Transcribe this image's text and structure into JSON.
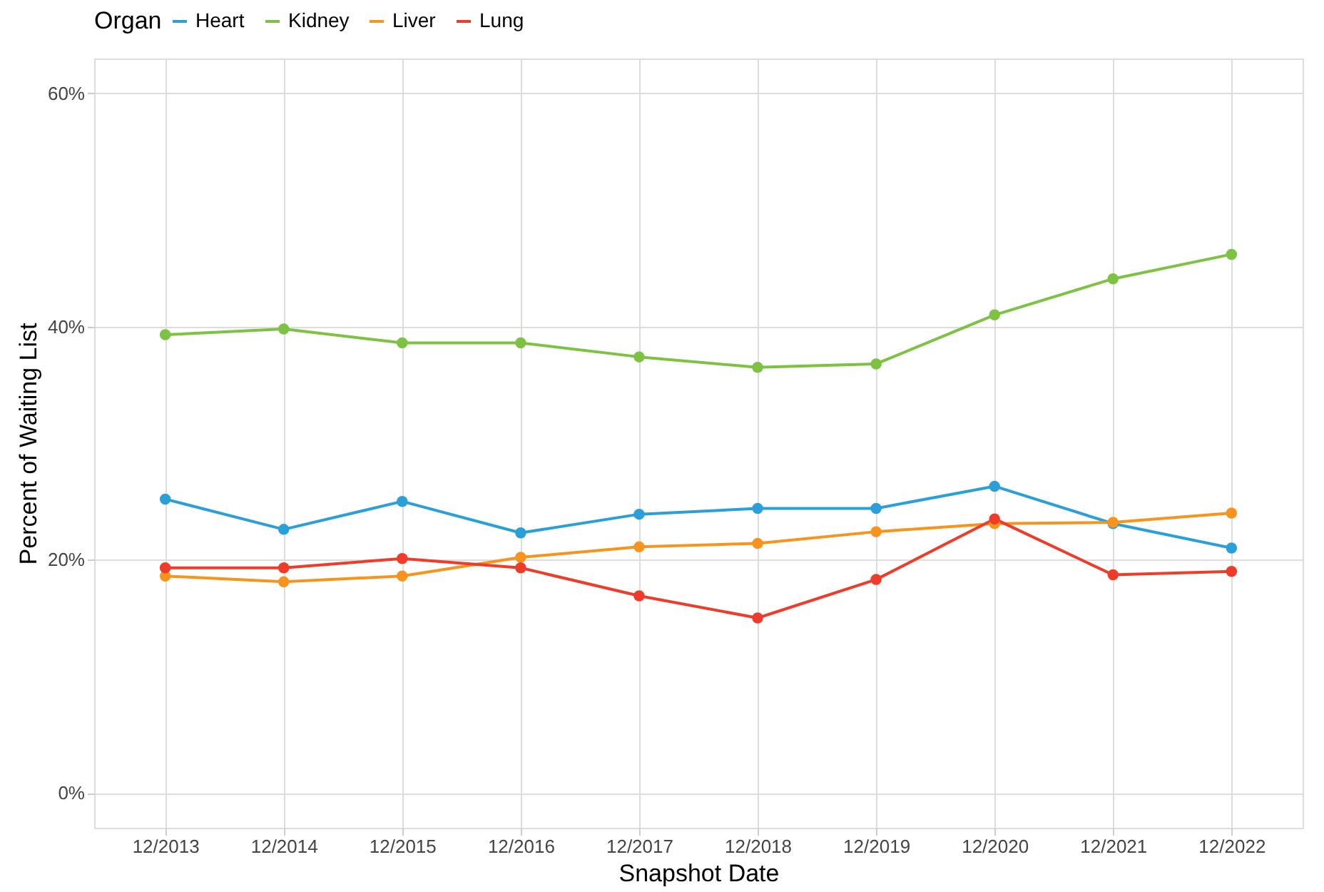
{
  "chart_data": {
    "type": "line",
    "xlabel": "Snapshot Date",
    "ylabel": "Percent of Waiting List",
    "legend_title": "Organ",
    "legend": "top",
    "grid": true,
    "marker": "circle",
    "line_style": "solid",
    "categories": [
      "12/2013",
      "12/2014",
      "12/2015",
      "12/2016",
      "12/2017",
      "12/2018",
      "12/2019",
      "12/2020",
      "12/2021",
      "12/2022"
    ],
    "ylim": [
      -3,
      63
    ],
    "yticks": [
      {
        "value": 0,
        "label": "0%"
      },
      {
        "value": 20,
        "label": "20%"
      },
      {
        "value": 40,
        "label": "40%"
      },
      {
        "value": 60,
        "label": "60%"
      }
    ],
    "series": [
      {
        "name": "Heart",
        "color": "#2a9fd8",
        "values": [
          25.2,
          22.6,
          25.0,
          22.3,
          23.9,
          24.4,
          24.4,
          26.3,
          23.1,
          21.0
        ]
      },
      {
        "name": "Kidney",
        "color": "#7dc242",
        "values": [
          39.3,
          39.8,
          38.6,
          38.6,
          37.4,
          36.5,
          36.8,
          41.0,
          44.1,
          46.2
        ]
      },
      {
        "name": "Liver",
        "color": "#f7941d",
        "values": [
          18.6,
          18.1,
          18.6,
          20.2,
          21.1,
          21.4,
          22.4,
          23.1,
          23.2,
          24.0
        ]
      },
      {
        "name": "Lung",
        "color": "#ee3b2a",
        "values": [
          19.3,
          19.3,
          20.1,
          19.3,
          16.9,
          15.0,
          18.3,
          23.5,
          18.7,
          19.0
        ]
      }
    ]
  }
}
